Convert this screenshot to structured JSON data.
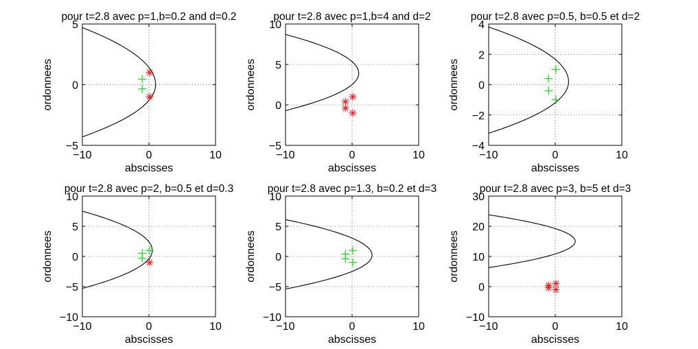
{
  "chart_data": [
    {
      "type": "line",
      "title": "pour t=2.8 avec p=1,b=0.2 and d=0.2",
      "xlabel": "abscisses",
      "ylabel": "ordonnees",
      "xlim": [
        -10,
        10
      ],
      "ylim": [
        -5,
        5
      ],
      "xticks": [
        -10,
        0,
        10
      ],
      "yticks": [
        -5,
        0,
        5
      ],
      "grid": true,
      "curve": {
        "vertex_x": 1.0,
        "vertex_y": 0.0,
        "y_at_xmin": [
          4.7,
          -4.3
        ]
      },
      "red_points": [
        [
          0.1,
          1.0
        ],
        [
          0.1,
          -1.0
        ]
      ],
      "green_points": [
        [
          -1.0,
          0.45
        ],
        [
          -1.0,
          -0.35
        ]
      ]
    },
    {
      "type": "line",
      "title": "pour t=2.8 avec p=1,b=4 and d=2",
      "xlabel": "abscisses",
      "ylabel": "ordonnees",
      "xlim": [
        -10,
        10
      ],
      "ylim": [
        -5,
        10
      ],
      "xticks": [
        -10,
        0,
        10
      ],
      "yticks": [
        -5,
        0,
        5,
        10
      ],
      "grid": true,
      "curve": {
        "vertex_x": 1.0,
        "vertex_y": 3.9,
        "y_at_xmin": [
          8.7,
          -0.7
        ]
      },
      "red_points": [
        [
          0.1,
          1.0
        ],
        [
          -1.0,
          0.4
        ],
        [
          -1.0,
          -0.4
        ],
        [
          0.1,
          -1.0
        ]
      ],
      "green_points": []
    },
    {
      "type": "line",
      "title": "pour t=2.8 avec p=0.5, b=0.5 et d=2",
      "xlabel": "abscisses",
      "ylabel": "ordonnees",
      "xlim": [
        -10,
        10
      ],
      "ylim": [
        -4,
        4
      ],
      "xticks": [
        -10,
        0,
        10
      ],
      "yticks": [
        -4,
        -2,
        0,
        2,
        4
      ],
      "grid": true,
      "curve": {
        "vertex_x": 2.0,
        "vertex_y": 0.2,
        "y_at_xmin": [
          3.8,
          -3.2
        ]
      },
      "red_points": [],
      "green_points": [
        [
          0.1,
          1.0
        ],
        [
          -1.0,
          0.4
        ],
        [
          -1.0,
          -0.4
        ],
        [
          0.1,
          -1.0
        ]
      ]
    },
    {
      "type": "line",
      "title": "pour t=2.8 avec p=2, b=0.5 et d=0.3",
      "xlabel": "abscisses",
      "ylabel": "ordonnees",
      "xlim": [
        -10,
        10
      ],
      "ylim": [
        -10,
        10
      ],
      "xticks": [
        -10,
        0,
        10
      ],
      "yticks": [
        -10,
        -5,
        0,
        5,
        10
      ],
      "grid": true,
      "curve": {
        "vertex_x": 0.5,
        "vertex_y": 1.0,
        "y_at_xmin": [
          7.5,
          -5.3
        ]
      },
      "red_points": [
        [
          0.1,
          -1.0
        ]
      ],
      "green_points": [
        [
          0.1,
          1.0
        ],
        [
          -1.0,
          0.5
        ],
        [
          -1.0,
          -0.3
        ]
      ]
    },
    {
      "type": "line",
      "title": "pour t=2.8 avec p=1.3, b=0.2 et d=3",
      "xlabel": "abscisses",
      "ylabel": "ordonnees",
      "xlim": [
        -10,
        10
      ],
      "ylim": [
        -10,
        10
      ],
      "xticks": [
        -10,
        0,
        10
      ],
      "yticks": [
        -10,
        -5,
        0,
        5,
        10
      ],
      "grid": true,
      "curve": {
        "vertex_x": 3.0,
        "vertex_y": 0.2,
        "y_at_xmin": [
          6.1,
          -5.4
        ]
      },
      "red_points": [],
      "green_points": [
        [
          0.1,
          1.0
        ],
        [
          -1.0,
          0.4
        ],
        [
          -1.0,
          -0.4
        ],
        [
          0.1,
          -1.0
        ]
      ]
    },
    {
      "type": "line",
      "title": "pour t=2.8 avec p=3, b=5 et d=3",
      "xlabel": "abscisses",
      "ylabel": "ordonnees",
      "xlim": [
        -10,
        10
      ],
      "ylim": [
        -10,
        30
      ],
      "xticks": [
        -10,
        0,
        10
      ],
      "yticks": [
        -10,
        0,
        10,
        20,
        30
      ],
      "grid": true,
      "curve": {
        "vertex_x": 3.0,
        "vertex_y": 15.0,
        "y_at_xmin": [
          23.8,
          6.3
        ]
      },
      "red_points": [
        [
          0.1,
          1.0
        ],
        [
          -1.0,
          0.4
        ],
        [
          -1.0,
          -0.4
        ],
        [
          0.1,
          -1.0
        ]
      ],
      "green_points": []
    }
  ]
}
